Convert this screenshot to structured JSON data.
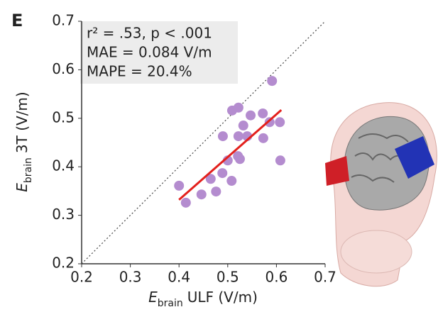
{
  "chart_data": {
    "type": "scatter",
    "panel_label": "E",
    "annotations": [
      "r² = .53, p < .001",
      "MAE = 0.084 V/m",
      "MAPE = 20.4%"
    ],
    "x_label": {
      "symbol": "E",
      "subscript": "brain",
      "text": "ULF (V/m)"
    },
    "y_label": {
      "symbol": "E",
      "subscript": "brain",
      "text": "3T (V/m)"
    },
    "x": [
      0.4,
      0.414,
      0.446,
      0.465,
      0.476,
      0.489,
      0.49,
      0.5,
      0.508,
      0.509,
      0.522,
      0.521,
      0.525,
      0.522,
      0.532,
      0.54,
      0.547,
      0.572,
      0.573,
      0.586,
      0.591,
      0.607,
      0.608
    ],
    "values": [
      0.361,
      0.326,
      0.343,
      0.375,
      0.349,
      0.387,
      0.463,
      0.413,
      0.371,
      0.516,
      0.522,
      0.422,
      0.416,
      0.463,
      0.485,
      0.463,
      0.506,
      0.51,
      0.459,
      0.492,
      0.577,
      0.492,
      0.413
    ],
    "color": "#b48ccf",
    "fit_line": {
      "x": [
        0.4,
        0.61
      ],
      "y": [
        0.332,
        0.517
      ],
      "color": "#e3201c"
    },
    "identity_line": true,
    "xlim": [
      0.2,
      0.7
    ],
    "ylim": [
      0.2,
      0.7
    ],
    "xticks": [
      0.2,
      0.3,
      0.4,
      0.5,
      0.6,
      0.7
    ],
    "yticks": [
      0.2,
      0.3,
      0.4,
      0.5,
      0.6,
      0.7
    ]
  }
}
